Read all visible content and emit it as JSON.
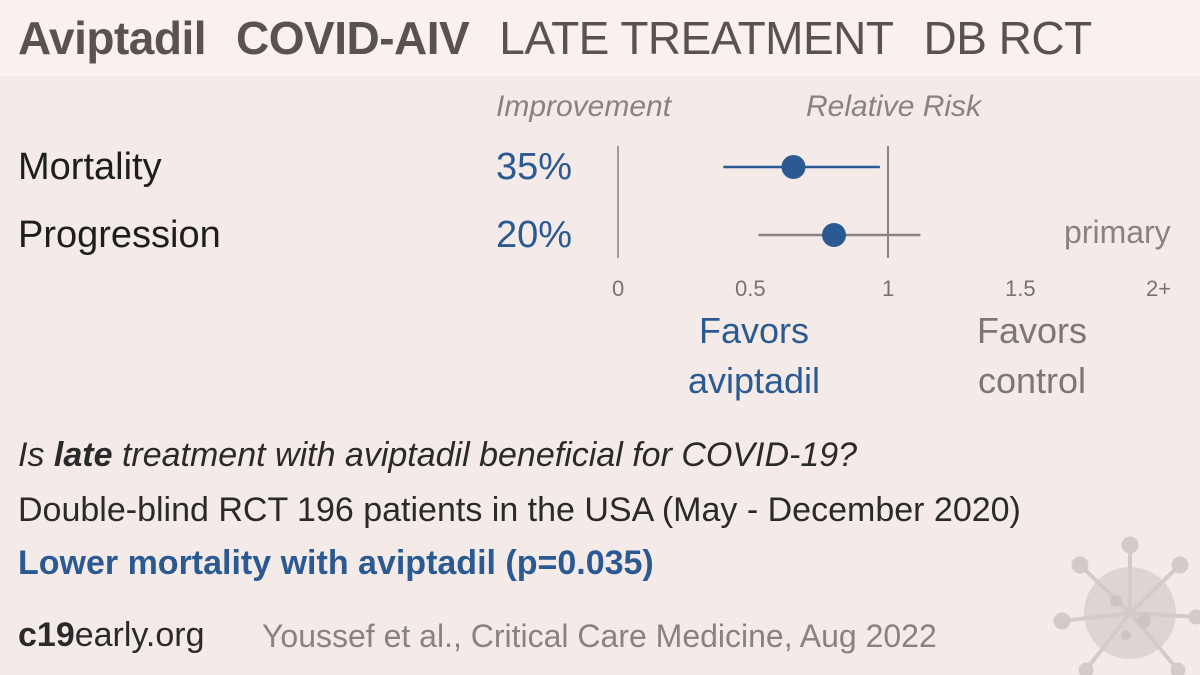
{
  "header": {
    "drug": "Aviptadil",
    "trial": "COVID-AIV",
    "stage": "LATE TREATMENT",
    "design": "DB RCT"
  },
  "columns": {
    "improvement": "Improvement",
    "relative_risk": "Relative Risk"
  },
  "colors": {
    "accent_blue": "#2b5a93",
    "gray_ci": "#8a8280",
    "background": "#f4ebe9"
  },
  "chart_data": {
    "type": "forest",
    "x_axis": {
      "min": 0,
      "max": 2,
      "ticks": [
        {
          "value": 0,
          "label": "0"
        },
        {
          "value": 0.5,
          "label": "0.5"
        },
        {
          "value": 1,
          "label": "1"
        },
        {
          "value": 1.5,
          "label": "1.5"
        },
        {
          "value": 2,
          "label": "2+"
        }
      ],
      "reference_line": 1
    },
    "rows": [
      {
        "outcome": "Mortality",
        "improvement": "35%",
        "rr": 0.65,
        "ci_low": 0.39,
        "ci_high": 0.97,
        "ci_color": "#2b5a93",
        "note": ""
      },
      {
        "outcome": "Progression",
        "improvement": "20%",
        "rr": 0.8,
        "ci_low": 0.52,
        "ci_high": 1.12,
        "ci_color": "#8a8280",
        "note": "primary"
      }
    ],
    "favors_left": [
      "Favors",
      "aviptadil"
    ],
    "favors_right": [
      "Favors",
      "control"
    ]
  },
  "summary": {
    "question_pre": "Is ",
    "question_bold": "late",
    "question_post": " treatment with aviptadil beneficial for COVID-19?",
    "design": "Double-blind RCT 196 patients in the USA (May - December 2020)",
    "conclusion": "Lower mortality with aviptadil (p=0.035)"
  },
  "footer": {
    "site_bold": "c19",
    "site_rest": "early.org",
    "citation": "Youssef et al., Critical Care Medicine, Aug 2022"
  }
}
